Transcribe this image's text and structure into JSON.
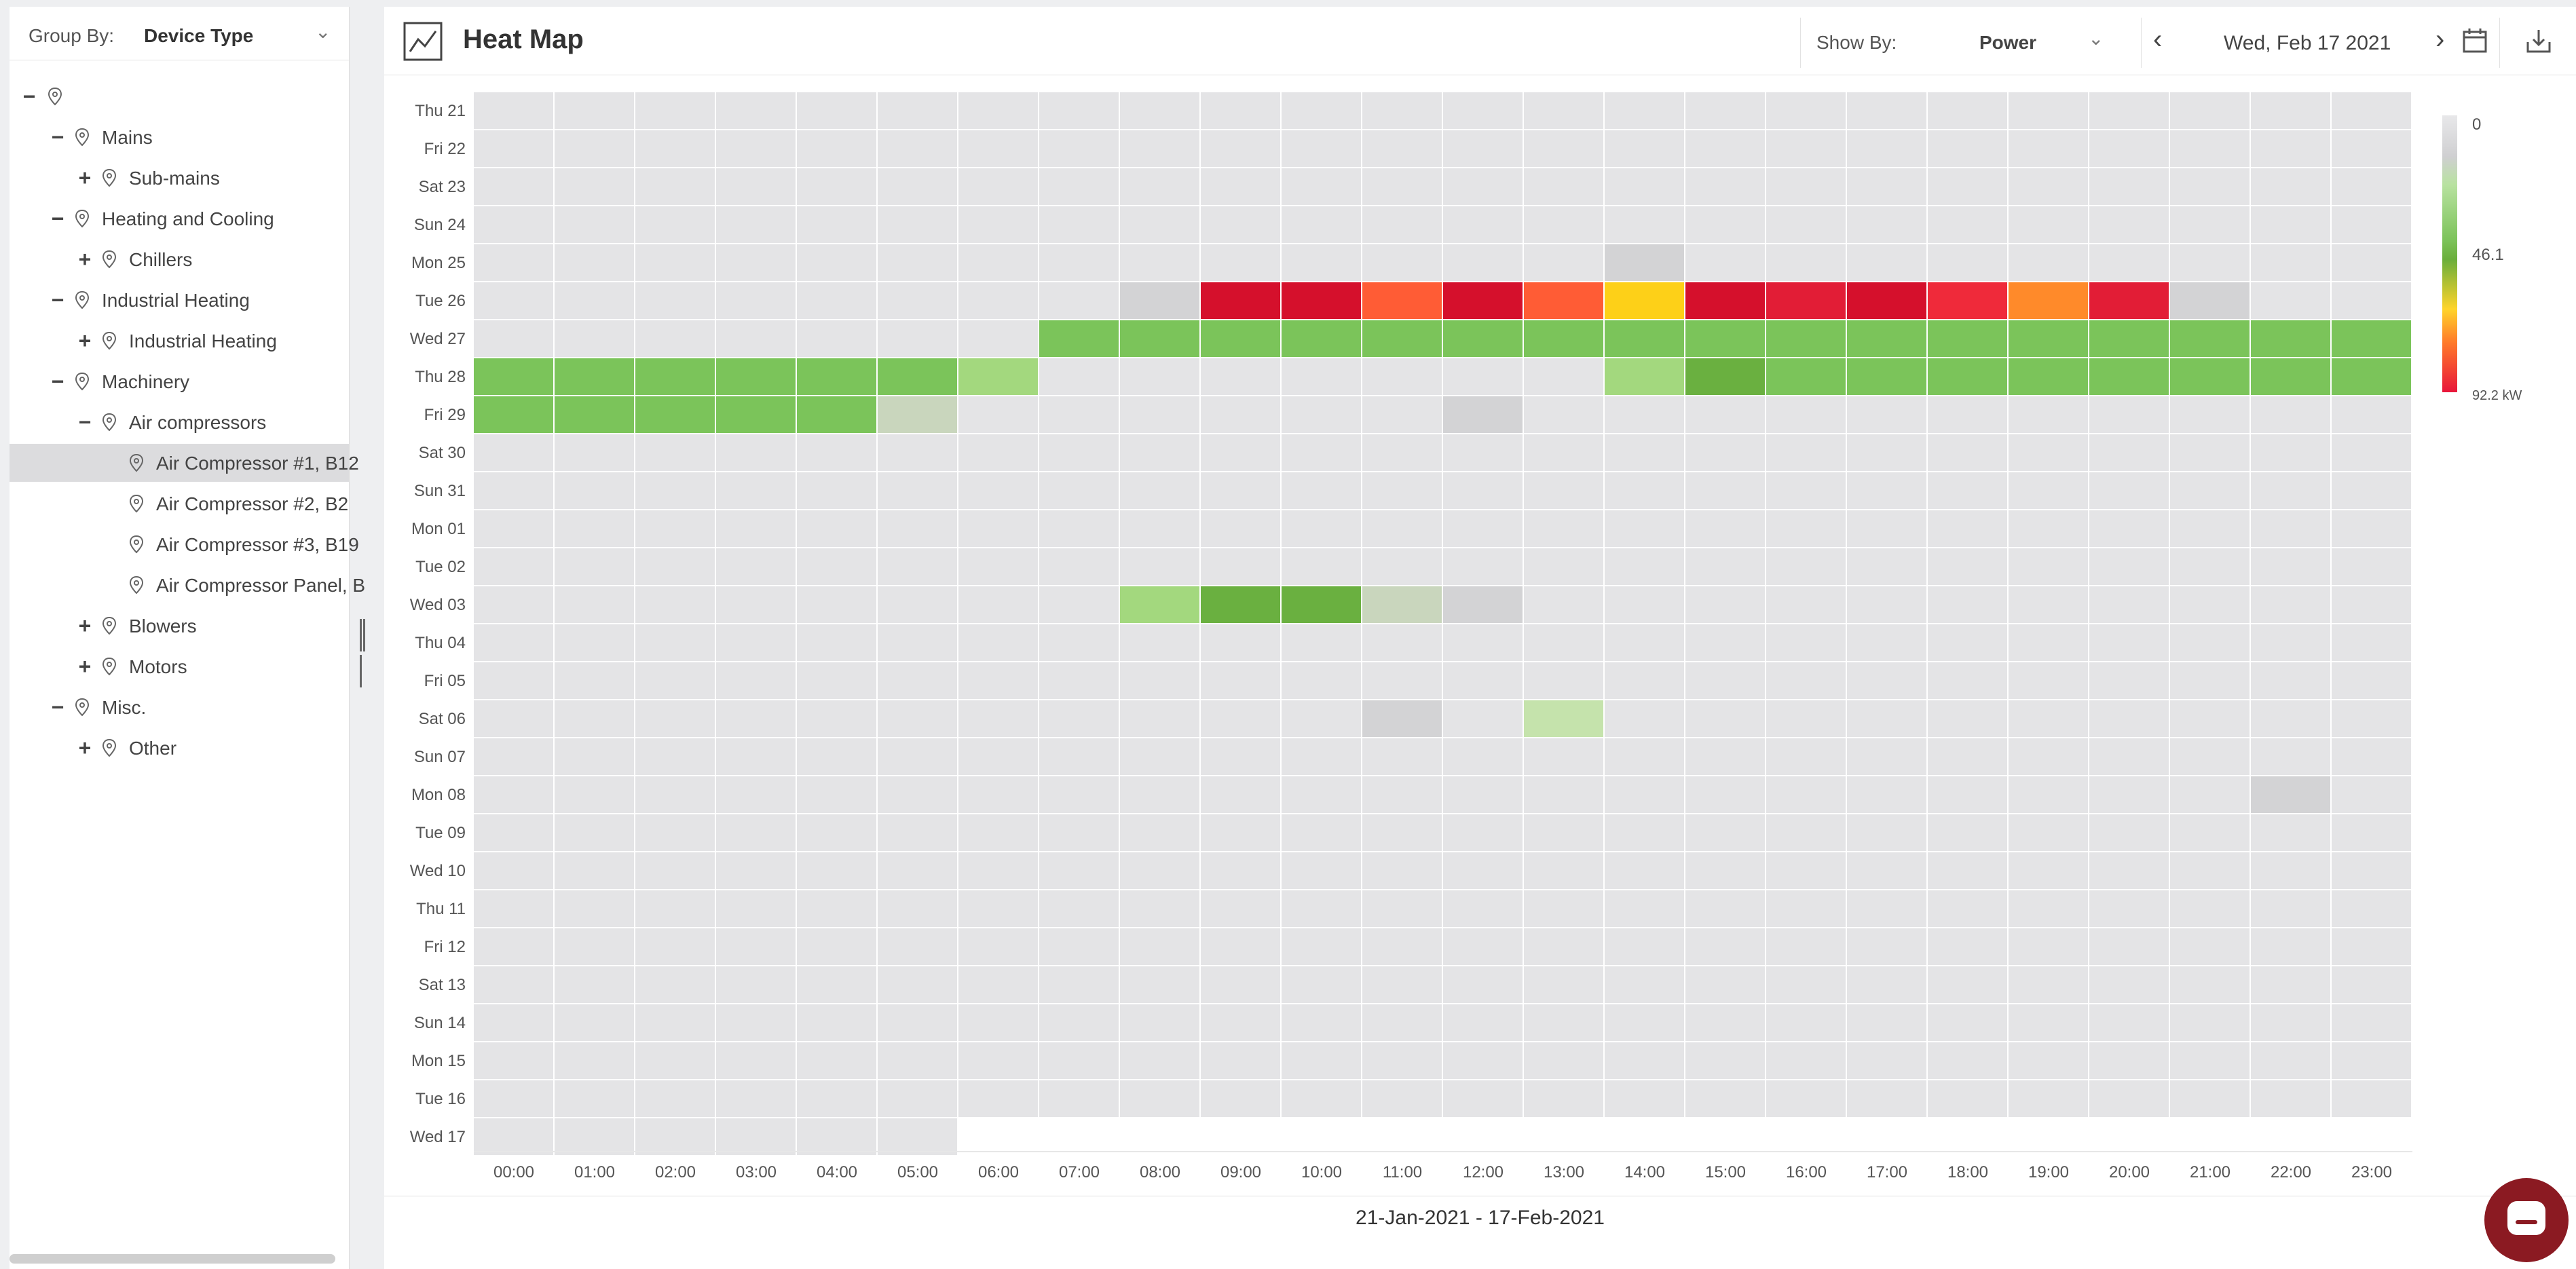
{
  "sidebar": {
    "group_by_label": "Group By:",
    "group_by_value": "Device Type",
    "tree": [
      {
        "label": "",
        "depth": 0,
        "toggle": "−",
        "selected": false
      },
      {
        "label": "Mains",
        "depth": 1,
        "toggle": "−",
        "selected": false
      },
      {
        "label": "Sub-mains",
        "depth": 2,
        "toggle": "+",
        "selected": false
      },
      {
        "label": "Heating and Cooling",
        "depth": 1,
        "toggle": "−",
        "selected": false
      },
      {
        "label": "Chillers",
        "depth": 2,
        "toggle": "+",
        "selected": false
      },
      {
        "label": "Industrial Heating",
        "depth": 1,
        "toggle": "−",
        "selected": false
      },
      {
        "label": "Industrial Heating",
        "depth": 2,
        "toggle": "+",
        "selected": false
      },
      {
        "label": "Machinery",
        "depth": 1,
        "toggle": "−",
        "selected": false
      },
      {
        "label": "Air compressors",
        "depth": 2,
        "toggle": "−",
        "selected": false
      },
      {
        "label": "Air Compressor #1, B12",
        "depth": 3,
        "toggle": "",
        "selected": true
      },
      {
        "label": "Air Compressor #2, B2",
        "depth": 3,
        "toggle": "",
        "selected": false
      },
      {
        "label": "Air Compressor #3, B19",
        "depth": 3,
        "toggle": "",
        "selected": false
      },
      {
        "label": "Air Compressor Panel, B",
        "depth": 3,
        "toggle": "",
        "selected": false
      },
      {
        "label": "Blowers",
        "depth": 2,
        "toggle": "+",
        "selected": false
      },
      {
        "label": "Motors",
        "depth": 2,
        "toggle": "+",
        "selected": false
      },
      {
        "label": "Misc.",
        "depth": 1,
        "toggle": "−",
        "selected": false
      },
      {
        "label": "Other",
        "depth": 2,
        "toggle": "+",
        "selected": false
      }
    ]
  },
  "header": {
    "title": "Heat Map",
    "show_by_label": "Show By:",
    "show_by_value": "Power",
    "date": "Wed, Feb 17 2021",
    "icons": [
      "line-chart-icon",
      "chevron-down-icon",
      "chevron-left-icon",
      "chevron-right-icon",
      "calendar-icon",
      "download-icon"
    ]
  },
  "heatmap": {
    "rows": [
      "Thu 21",
      "Fri 22",
      "Sat 23",
      "Sun 24",
      "Mon 25",
      "Tue 26",
      "Wed 27",
      "Thu 28",
      "Fri 29",
      "Sat 30",
      "Sun 31",
      "Mon 01",
      "Tue 02",
      "Wed 03",
      "Thu 04",
      "Fri 05",
      "Sat 06",
      "Sun 07",
      "Mon 08",
      "Tue 09",
      "Wed 10",
      "Thu 11",
      "Fri 12",
      "Sat 13",
      "Sun 14",
      "Mon 15",
      "Tue 16",
      "Wed 17"
    ],
    "columns": [
      "00:00",
      "01:00",
      "02:00",
      "03:00",
      "04:00",
      "05:00",
      "06:00",
      "07:00",
      "08:00",
      "09:00",
      "10:00",
      "11:00",
      "12:00",
      "13:00",
      "14:00",
      "15:00",
      "16:00",
      "17:00",
      "18:00",
      "19:00",
      "20:00",
      "21:00",
      "22:00",
      "23:00"
    ],
    "colors": {
      "empty": "#e4e4e6",
      "grey1": "#d3d3d5",
      "grey2": "#c9d6bd",
      "lightgreen": "#a3d87e",
      "palegreen": "#c5e3ac",
      "green": "#7bc45a",
      "darkgreen": "#6ab040",
      "red": "#d5102c",
      "red2": "#e21d36",
      "red3": "#ef2a3a",
      "orange": "#ff5c35",
      "orange2": "#ff8a2a",
      "yellow": "#fdd018"
    },
    "cells": {
      "Mon 25": {
        "14": "grey1"
      },
      "Tue 26": {
        "08": "grey1",
        "09": "red",
        "10": "red",
        "11": "orange",
        "12": "red",
        "13": "orange",
        "14": "yellow",
        "15": "red",
        "16": "red2",
        "17": "red",
        "18": "red3",
        "19": "orange2",
        "20": "red2",
        "21": "grey1"
      },
      "Wed 27": {
        "07": "green",
        "08": "green",
        "09": "green",
        "10": "green",
        "11": "green",
        "12": "green",
        "13": "green",
        "14": "green",
        "15": "green",
        "16": "green",
        "17": "green",
        "18": "green",
        "19": "green",
        "20": "green",
        "21": "green",
        "22": "green",
        "23": "green"
      },
      "Thu 28": {
        "00": "green",
        "01": "green",
        "02": "green",
        "03": "green",
        "04": "green",
        "05": "green",
        "06": "lightgreen",
        "14": "lightgreen",
        "15": "darkgreen",
        "16": "green",
        "17": "green",
        "18": "green",
        "19": "green",
        "20": "green",
        "21": "green",
        "22": "green",
        "23": "green"
      },
      "Fri 29": {
        "00": "green",
        "01": "green",
        "02": "green",
        "03": "green",
        "04": "green",
        "05": "grey2",
        "12": "grey1"
      },
      "Wed 03": {
        "08": "lightgreen",
        "09": "darkgreen",
        "10": "darkgreen",
        "11": "grey2",
        "12": "grey1"
      },
      "Sat 06": {
        "11": "grey1",
        "13": "palegreen"
      },
      "Mon 08": {
        "22": "grey1"
      }
    },
    "last_row_hours": 6,
    "legend": {
      "min": "0",
      "mid": "46.1",
      "max": "92.2 kW"
    },
    "date_range": "21-Jan-2021 - 17-Feb-2021"
  }
}
